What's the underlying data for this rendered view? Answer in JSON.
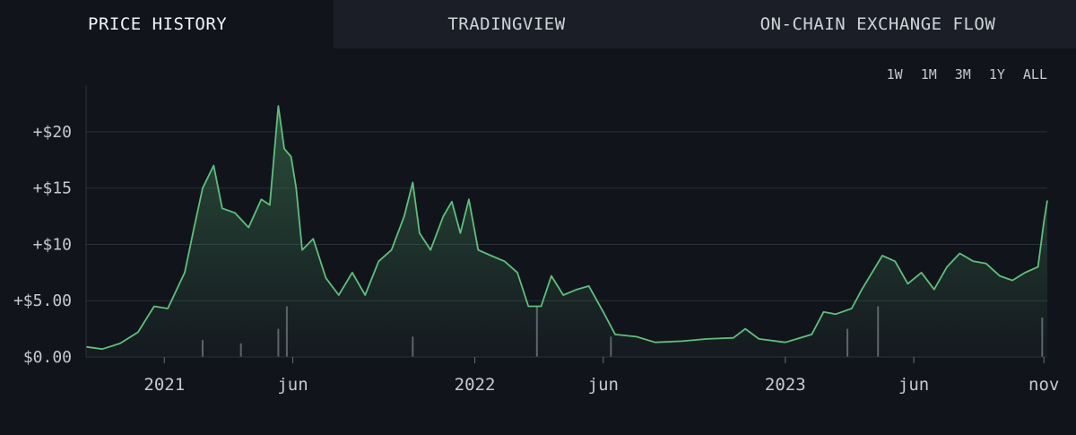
{
  "tabs": [
    {
      "label": "PRICE HISTORY",
      "active": true
    },
    {
      "label": "TRADINGVIEW",
      "active": false
    },
    {
      "label": "ON-CHAIN EXCHANGE FLOW",
      "active": false
    }
  ],
  "ranges": [
    "1W",
    "1M",
    "3M",
    "1Y",
    "ALL"
  ],
  "colors": {
    "line": "#5fbf7c",
    "fill_top": "#3e7d54",
    "volume": "#7a7d85",
    "grid": "#2b2f38",
    "axis_text": "#c5c9d1",
    "background": "#12141c"
  },
  "chart_data": {
    "type": "area",
    "title": "",
    "xlabel": "",
    "ylabel": "",
    "ylim": [
      0,
      23.5
    ],
    "xlim": [
      "2020-10-01",
      "2023-11-05"
    ],
    "y_ticks": [
      {
        "value": 0,
        "label": "$0.00"
      },
      {
        "value": 5,
        "label": "+$5.00"
      },
      {
        "value": 10,
        "label": "+$10"
      },
      {
        "value": 15,
        "label": "+$15"
      },
      {
        "value": 20,
        "label": "+$20"
      }
    ],
    "x_ticks": [
      {
        "date": "2021-01-01",
        "label": "2021"
      },
      {
        "date": "2021-06-01",
        "label": "jun"
      },
      {
        "date": "2022-01-01",
        "label": "2022"
      },
      {
        "date": "2022-06-01",
        "label": "jun"
      },
      {
        "date": "2023-01-01",
        "label": "2023"
      },
      {
        "date": "2023-06-01",
        "label": "jun"
      },
      {
        "date": "2023-11-01",
        "label": "nov"
      }
    ],
    "grid": true,
    "series": [
      {
        "type": "line",
        "points": [
          [
            "2020-10-01",
            0.9
          ],
          [
            "2020-10-20",
            0.7
          ],
          [
            "2020-11-10",
            1.2
          ],
          [
            "2020-12-01",
            2.2
          ],
          [
            "2020-12-20",
            4.5
          ],
          [
            "2021-01-05",
            4.3
          ],
          [
            "2021-01-25",
            7.5
          ],
          [
            "2021-02-05",
            11.5
          ],
          [
            "2021-02-15",
            15.0
          ],
          [
            "2021-02-28",
            17.0
          ],
          [
            "2021-03-10",
            13.2
          ],
          [
            "2021-03-25",
            12.8
          ],
          [
            "2021-04-10",
            11.5
          ],
          [
            "2021-04-25",
            14.0
          ],
          [
            "2021-05-05",
            13.5
          ],
          [
            "2021-05-15",
            22.3
          ],
          [
            "2021-05-22",
            18.5
          ],
          [
            "2021-05-30",
            17.8
          ],
          [
            "2021-06-05",
            15.0
          ],
          [
            "2021-06-12",
            9.5
          ],
          [
            "2021-06-25",
            10.5
          ],
          [
            "2021-07-10",
            7.0
          ],
          [
            "2021-07-25",
            5.5
          ],
          [
            "2021-08-10",
            7.5
          ],
          [
            "2021-08-25",
            5.5
          ],
          [
            "2021-09-10",
            8.5
          ],
          [
            "2021-09-25",
            9.5
          ],
          [
            "2021-10-10",
            12.5
          ],
          [
            "2021-10-20",
            15.5
          ],
          [
            "2021-10-28",
            11.0
          ],
          [
            "2021-11-10",
            9.5
          ],
          [
            "2021-11-25",
            12.5
          ],
          [
            "2021-12-05",
            13.8
          ],
          [
            "2021-12-15",
            11.0
          ],
          [
            "2021-12-25",
            14.0
          ],
          [
            "2022-01-05",
            9.5
          ],
          [
            "2022-01-20",
            9.0
          ],
          [
            "2022-02-05",
            8.5
          ],
          [
            "2022-02-20",
            7.5
          ],
          [
            "2022-03-05",
            4.5
          ],
          [
            "2022-03-20",
            4.5
          ],
          [
            "2022-04-01",
            7.2
          ],
          [
            "2022-04-15",
            5.5
          ],
          [
            "2022-05-01",
            6.0
          ],
          [
            "2022-05-15",
            6.3
          ],
          [
            "2022-06-01",
            4.0
          ],
          [
            "2022-06-15",
            2.0
          ],
          [
            "2022-07-10",
            1.8
          ],
          [
            "2022-08-01",
            1.3
          ],
          [
            "2022-09-01",
            1.4
          ],
          [
            "2022-10-01",
            1.6
          ],
          [
            "2022-11-01",
            1.7
          ],
          [
            "2022-11-15",
            2.5
          ],
          [
            "2022-12-01",
            1.6
          ],
          [
            "2023-01-01",
            1.3
          ],
          [
            "2023-02-01",
            2.0
          ],
          [
            "2023-02-15",
            4.0
          ],
          [
            "2023-03-01",
            3.8
          ],
          [
            "2023-03-20",
            4.3
          ],
          [
            "2023-04-01",
            6.0
          ],
          [
            "2023-04-25",
            9.0
          ],
          [
            "2023-05-10",
            8.5
          ],
          [
            "2023-05-25",
            6.5
          ],
          [
            "2023-06-10",
            7.5
          ],
          [
            "2023-06-25",
            6.0
          ],
          [
            "2023-07-10",
            8.0
          ],
          [
            "2023-07-25",
            9.2
          ],
          [
            "2023-08-10",
            8.5
          ],
          [
            "2023-08-25",
            8.3
          ],
          [
            "2023-09-10",
            7.2
          ],
          [
            "2023-09-25",
            6.8
          ],
          [
            "2023-10-10",
            7.5
          ],
          [
            "2023-10-25",
            8.0
          ],
          [
            "2023-11-01",
            12.0
          ],
          [
            "2023-11-05",
            13.9
          ]
        ]
      },
      {
        "type": "volume",
        "points": [
          [
            "2021-02-15",
            1.5
          ],
          [
            "2021-04-01",
            1.2
          ],
          [
            "2021-05-15",
            2.5
          ],
          [
            "2021-05-25",
            4.5
          ],
          [
            "2021-10-20",
            1.8
          ],
          [
            "2022-03-15",
            4.5
          ],
          [
            "2022-06-10",
            1.8
          ],
          [
            "2023-03-15",
            2.5
          ],
          [
            "2023-04-20",
            4.5
          ],
          [
            "2023-10-30",
            3.5
          ]
        ]
      }
    ]
  }
}
